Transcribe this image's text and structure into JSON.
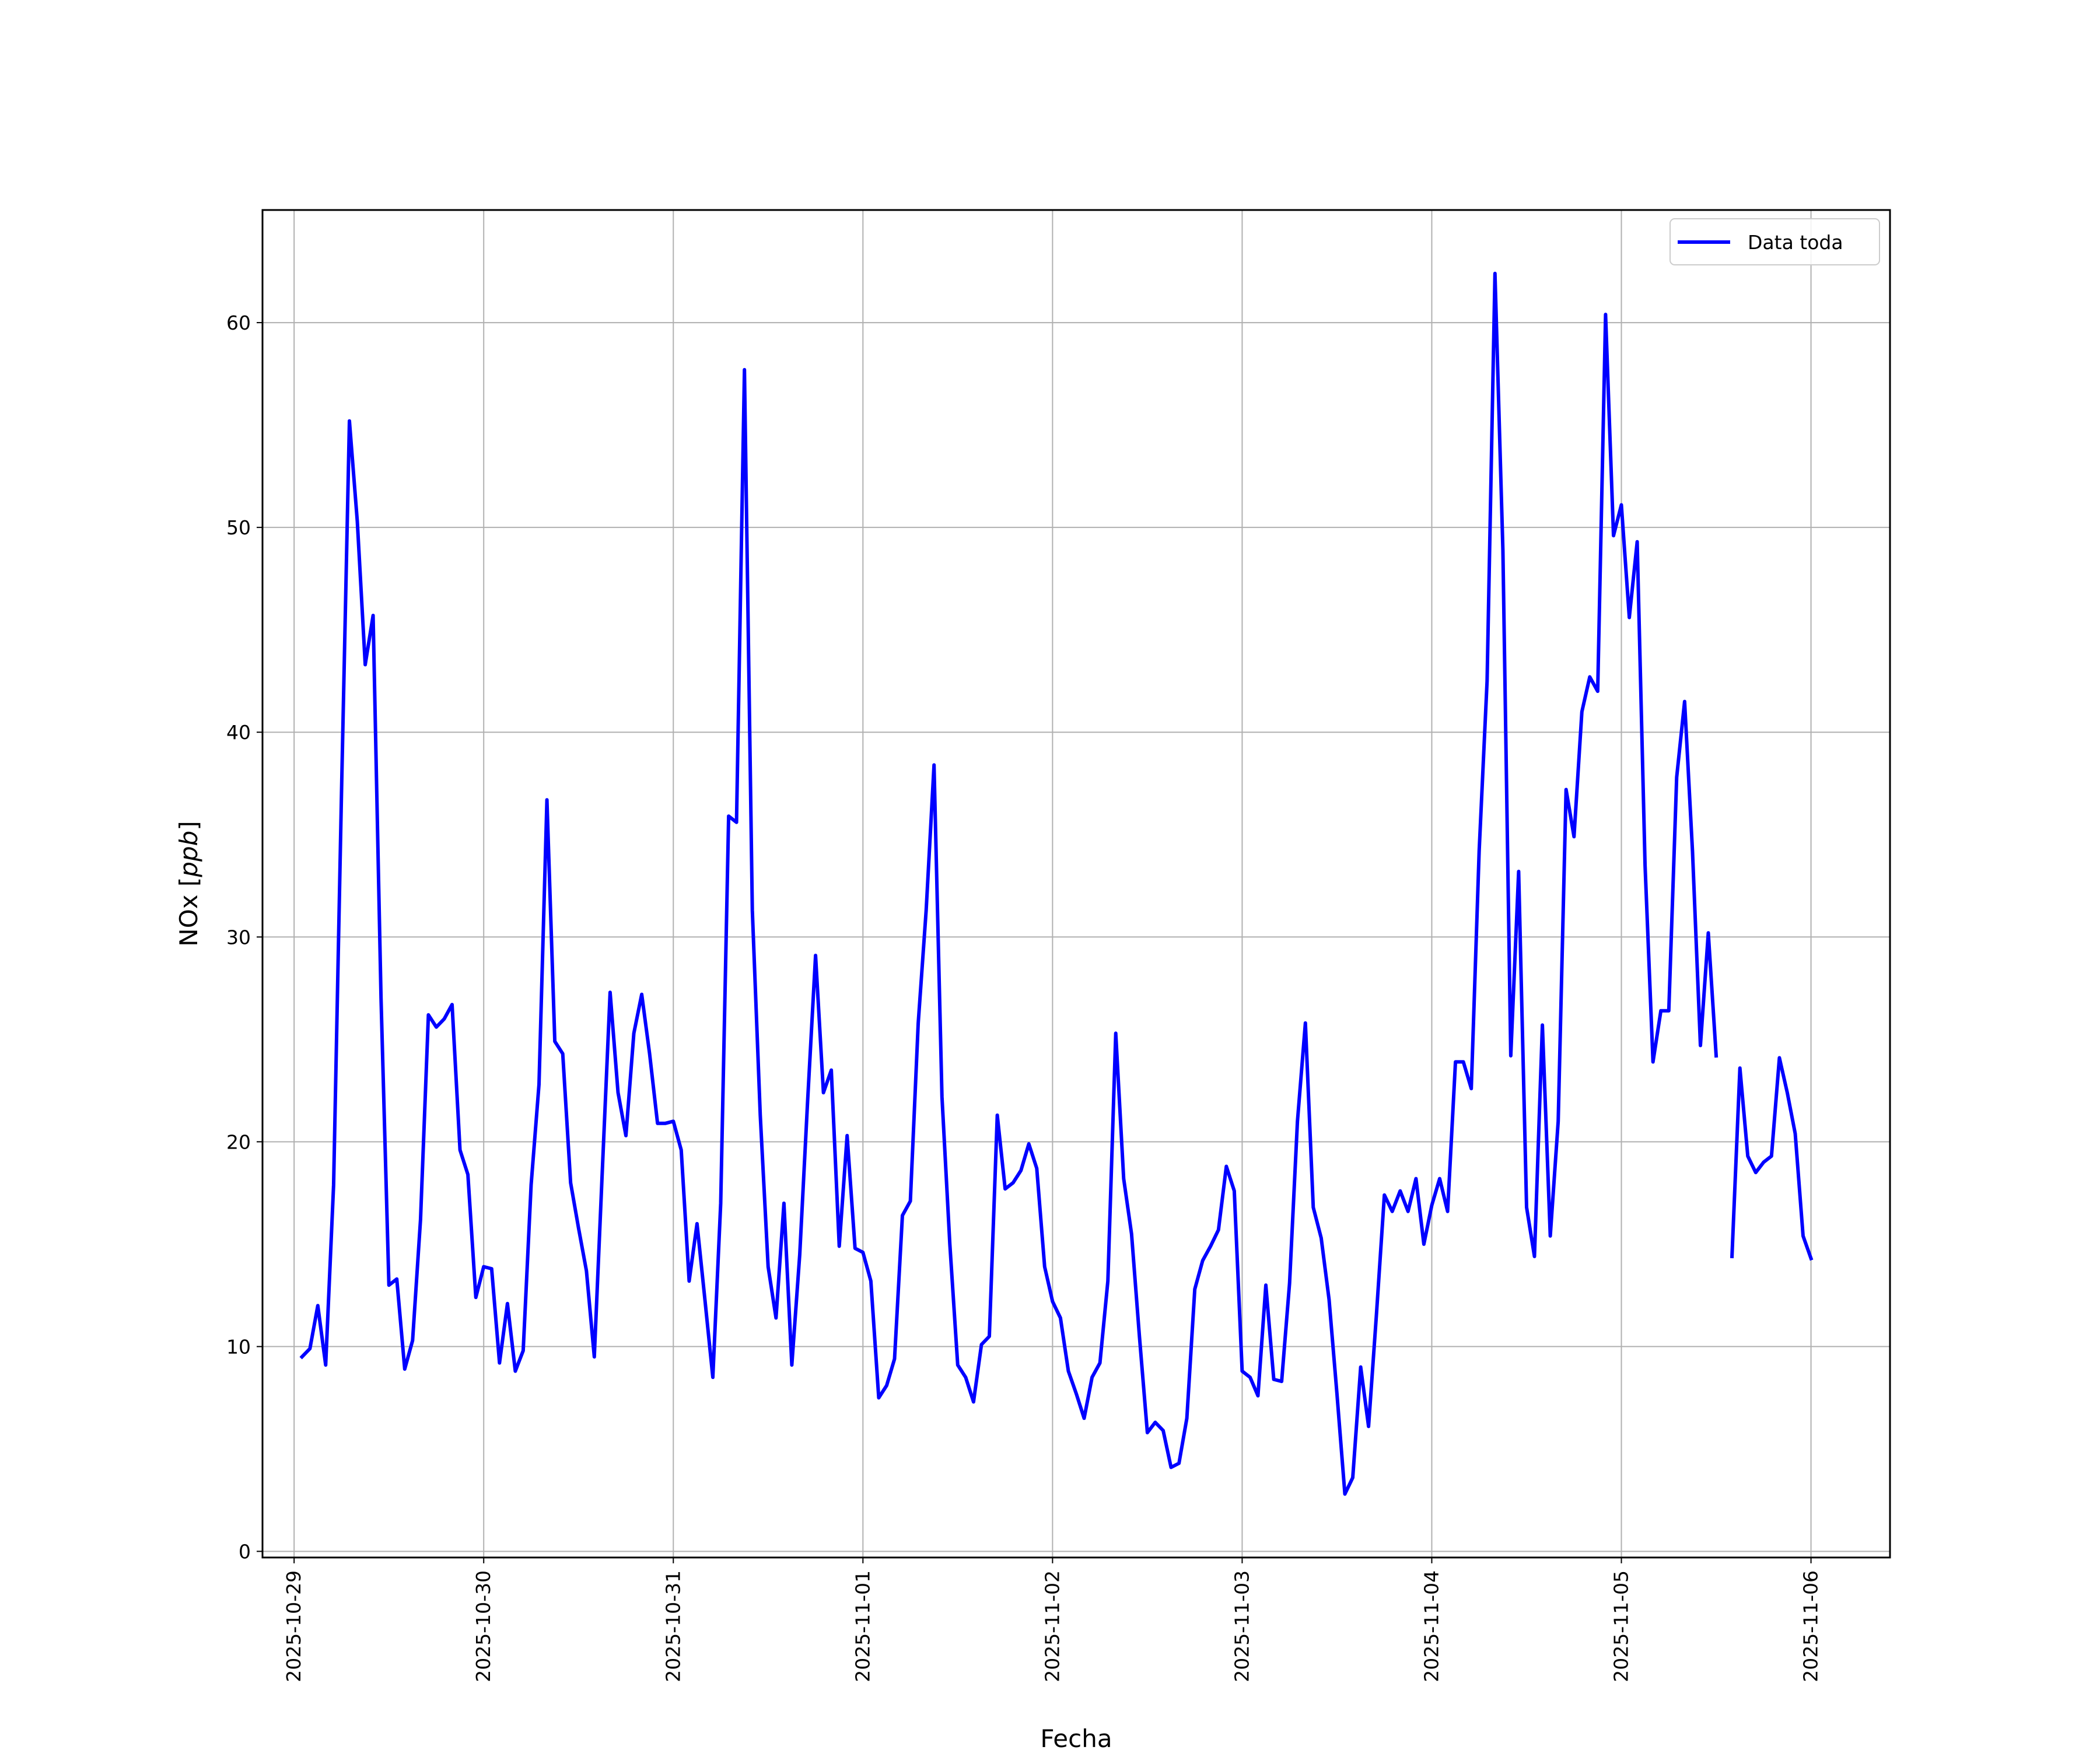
{
  "chart_data": {
    "type": "line",
    "xlabel": "Fecha",
    "ylabel": "NOx [ppb]",
    "ylabel_parts": {
      "text": "NOx [",
      "unit": "ppb",
      "close": "]"
    },
    "xlim": [
      "2025-10-28T20:00",
      "2025-11-06T10:00"
    ],
    "ylim": [
      -0.3,
      65.5
    ],
    "x_tick_labels": [
      "2025-10-29",
      "2025-10-30",
      "2025-10-31",
      "2025-11-01",
      "2025-11-02",
      "2025-11-03",
      "2025-11-04",
      "2025-11-05",
      "2025-11-06"
    ],
    "y_tick_labels": [
      "0",
      "10",
      "20",
      "30",
      "40",
      "50",
      "60"
    ],
    "y_ticks": [
      0,
      10,
      20,
      30,
      40,
      50,
      60
    ],
    "grid": true,
    "legend_position": "top-right",
    "series": [
      {
        "name": "Data toda",
        "color": "#0000ff",
        "x": [
          "2025-10-29T01:00",
          "2025-10-29T02:00",
          "2025-10-29T03:00",
          "2025-10-29T04:00",
          "2025-10-29T05:00",
          "2025-10-29T06:00",
          "2025-10-29T07:00",
          "2025-10-29T08:00",
          "2025-10-29T09:00",
          "2025-10-29T10:00",
          "2025-10-29T11:00",
          "2025-10-29T12:00",
          "2025-10-29T13:00",
          "2025-10-29T14:00",
          "2025-10-29T15:00",
          "2025-10-29T16:00",
          "2025-10-29T17:00",
          "2025-10-29T18:00",
          "2025-10-29T19:00",
          "2025-10-29T20:00",
          "2025-10-29T21:00",
          "2025-10-29T22:00",
          "2025-10-29T23:00",
          "2025-10-30T00:00",
          "2025-10-30T01:00",
          "2025-10-30T02:00",
          "2025-10-30T03:00",
          "2025-10-30T04:00",
          "2025-10-30T05:00",
          "2025-10-30T06:00",
          "2025-10-30T07:00",
          "2025-10-30T08:00",
          "2025-10-30T09:00",
          "2025-10-30T10:00",
          "2025-10-30T11:00",
          "2025-10-30T12:00",
          "2025-10-30T13:00",
          "2025-10-30T14:00",
          "2025-10-30T15:00",
          "2025-10-30T16:00",
          "2025-10-30T17:00",
          "2025-10-30T18:00",
          "2025-10-30T19:00",
          "2025-10-30T20:00",
          "2025-10-30T21:00",
          "2025-10-30T22:00",
          "2025-10-30T23:00",
          "2025-10-31T00:00",
          "2025-10-31T01:00",
          "2025-10-31T02:00",
          "2025-10-31T03:00",
          "2025-10-31T04:00",
          "2025-10-31T05:00",
          "2025-10-31T06:00",
          "2025-10-31T07:00",
          "2025-10-31T08:00",
          "2025-10-31T09:00",
          "2025-10-31T10:00",
          "2025-10-31T11:00",
          "2025-10-31T12:00",
          "2025-10-31T13:00",
          "2025-10-31T14:00",
          "2025-10-31T15:00",
          "2025-10-31T16:00",
          "2025-10-31T17:00",
          "2025-10-31T18:00",
          "2025-10-31T19:00",
          "2025-10-31T20:00",
          "2025-10-31T21:00",
          "2025-10-31T22:00",
          "2025-10-31T23:00",
          "2025-11-01T00:00",
          "2025-11-01T01:00",
          "2025-11-01T02:00",
          "2025-11-01T03:00",
          "2025-11-01T04:00",
          "2025-11-01T05:00",
          "2025-11-01T06:00",
          "2025-11-01T07:00",
          "2025-11-01T08:00",
          "2025-11-01T09:00",
          "2025-11-01T10:00",
          "2025-11-01T11:00",
          "2025-11-01T12:00",
          "2025-11-01T13:00",
          "2025-11-01T14:00",
          "2025-11-01T15:00",
          "2025-11-01T16:00",
          "2025-11-01T17:00",
          "2025-11-01T18:00",
          "2025-11-01T19:00",
          "2025-11-01T20:00",
          "2025-11-01T21:00",
          "2025-11-01T22:00",
          "2025-11-01T23:00",
          "2025-11-02T00:00",
          "2025-11-02T01:00",
          "2025-11-02T02:00",
          "2025-11-02T03:00",
          "2025-11-02T04:00",
          "2025-11-02T05:00",
          "2025-11-02T06:00",
          "2025-11-02T07:00",
          "2025-11-02T08:00",
          "2025-11-02T09:00",
          "2025-11-02T10:00",
          "2025-11-02T11:00",
          "2025-11-02T12:00",
          "2025-11-02T13:00",
          "2025-11-02T14:00",
          "2025-11-02T15:00",
          "2025-11-02T16:00",
          "2025-11-02T17:00",
          "2025-11-02T18:00",
          "2025-11-02T19:00",
          "2025-11-02T20:00",
          "2025-11-02T21:00",
          "2025-11-02T22:00",
          "2025-11-02T23:00",
          "2025-11-03T00:00",
          "2025-11-03T01:00",
          "2025-11-03T02:00",
          "2025-11-03T03:00",
          "2025-11-03T04:00",
          "2025-11-03T05:00",
          "2025-11-03T06:00",
          "2025-11-03T07:00",
          "2025-11-03T08:00",
          "2025-11-03T09:00",
          "2025-11-03T10:00",
          "2025-11-03T11:00",
          "2025-11-03T12:00",
          "2025-11-03T13:00",
          "2025-11-03T14:00",
          "2025-11-03T15:00",
          "2025-11-03T16:00",
          "2025-11-03T17:00",
          "2025-11-03T18:00",
          "2025-11-03T19:00",
          "2025-11-03T20:00",
          "2025-11-03T21:00",
          "2025-11-03T22:00",
          "2025-11-03T23:00",
          "2025-11-04T00:00",
          "2025-11-04T01:00",
          "2025-11-04T02:00",
          "2025-11-04T03:00",
          "2025-11-04T04:00",
          "2025-11-04T05:00",
          "2025-11-04T06:00",
          "2025-11-04T07:00",
          "2025-11-04T08:00",
          "2025-11-04T09:00",
          "2025-11-04T10:00",
          "2025-11-04T11:00",
          "2025-11-04T12:00",
          "2025-11-04T13:00",
          "2025-11-04T14:00",
          "2025-11-04T15:00",
          "2025-11-04T16:00",
          "2025-11-04T17:00",
          "2025-11-04T18:00",
          "2025-11-04T19:00",
          "2025-11-04T20:00",
          "2025-11-04T21:00",
          "2025-11-04T22:00",
          "2025-11-04T23:00",
          "2025-11-05T00:00",
          "2025-11-05T01:00",
          "2025-11-05T02:00",
          "2025-11-05T03:00",
          "2025-11-05T04:00",
          "2025-11-05T05:00",
          "2025-11-05T06:00",
          "2025-11-05T07:00",
          "2025-11-05T08:00",
          "2025-11-05T09:00",
          "2025-11-05T10:00",
          "2025-11-05T11:00",
          "2025-11-05T12:00",
          "2025-11-05T13:00",
          "2025-11-05T14:00",
          "2025-11-05T15:00",
          "2025-11-05T16:00",
          "2025-11-05T17:00",
          "2025-11-05T18:00",
          "2025-11-05T19:00",
          "2025-11-05T20:00",
          "2025-11-05T21:00",
          "2025-11-05T22:00",
          "2025-11-05T23:00",
          "2025-11-06T00:00"
        ],
        "values": [
          9.5,
          9.9,
          12.0,
          9.1,
          17.9,
          37.0,
          55.2,
          50.3,
          43.3,
          45.7,
          27.0,
          13.0,
          13.3,
          8.9,
          10.3,
          16.2,
          26.2,
          25.6,
          26.0,
          26.7,
          19.6,
          18.4,
          12.4,
          13.9,
          13.8,
          9.2,
          12.1,
          8.8,
          9.8,
          17.9,
          22.8,
          36.7,
          24.9,
          24.3,
          18.0,
          15.8,
          13.7,
          9.5,
          18.5,
          27.3,
          22.4,
          20.3,
          25.3,
          27.2,
          24.3,
          20.9,
          20.9,
          21.0,
          19.6,
          13.2,
          16.0,
          12.3,
          8.5,
          17.0,
          35.9,
          35.6,
          57.7,
          31.3,
          21.3,
          13.9,
          11.4,
          17.0,
          9.1,
          14.5,
          22.0,
          29.1,
          22.4,
          23.5,
          14.9,
          20.3,
          14.8,
          14.6,
          13.2,
          7.5,
          8.1,
          9.4,
          16.4,
          17.1,
          25.8,
          31.3,
          38.4,
          22.2,
          15.0,
          9.1,
          8.5,
          7.3,
          10.1,
          10.5,
          21.3,
          17.7,
          18.0,
          18.6,
          19.9,
          18.7,
          13.9,
          12.2,
          11.4,
          8.8,
          7.7,
          6.5,
          8.5,
          9.2,
          13.2,
          25.3,
          18.2,
          15.5,
          10.5,
          5.8,
          6.3,
          5.9,
          4.1,
          4.3,
          6.5,
          12.8,
          14.2,
          14.9,
          15.7,
          18.8,
          17.6,
          8.8,
          8.5,
          7.6,
          13.0,
          8.4,
          8.3,
          13.1,
          21.0,
          25.8,
          16.8,
          15.3,
          12.3,
          7.7,
          2.8,
          3.6,
          9.0,
          6.1,
          11.6,
          17.4,
          16.6,
          17.6,
          16.6,
          18.2,
          15.0,
          16.9,
          18.2,
          16.6,
          23.9,
          23.9,
          22.6,
          34.2,
          42.5,
          62.4,
          48.9,
          24.2,
          33.2,
          16.8,
          14.4,
          25.7,
          15.4,
          21.0,
          37.2,
          34.9,
          41.0,
          42.7,
          42.0,
          60.4,
          49.6,
          51.1,
          45.6,
          49.3,
          33.5,
          23.9,
          26.4,
          26.4,
          37.8,
          41.5,
          34.2,
          24.7,
          30.2,
          24.2,
          null,
          14.4,
          23.6,
          19.3,
          18.5,
          19.0,
          19.3,
          24.1,
          22.4,
          20.4,
          15.4,
          14.3
        ]
      }
    ]
  }
}
